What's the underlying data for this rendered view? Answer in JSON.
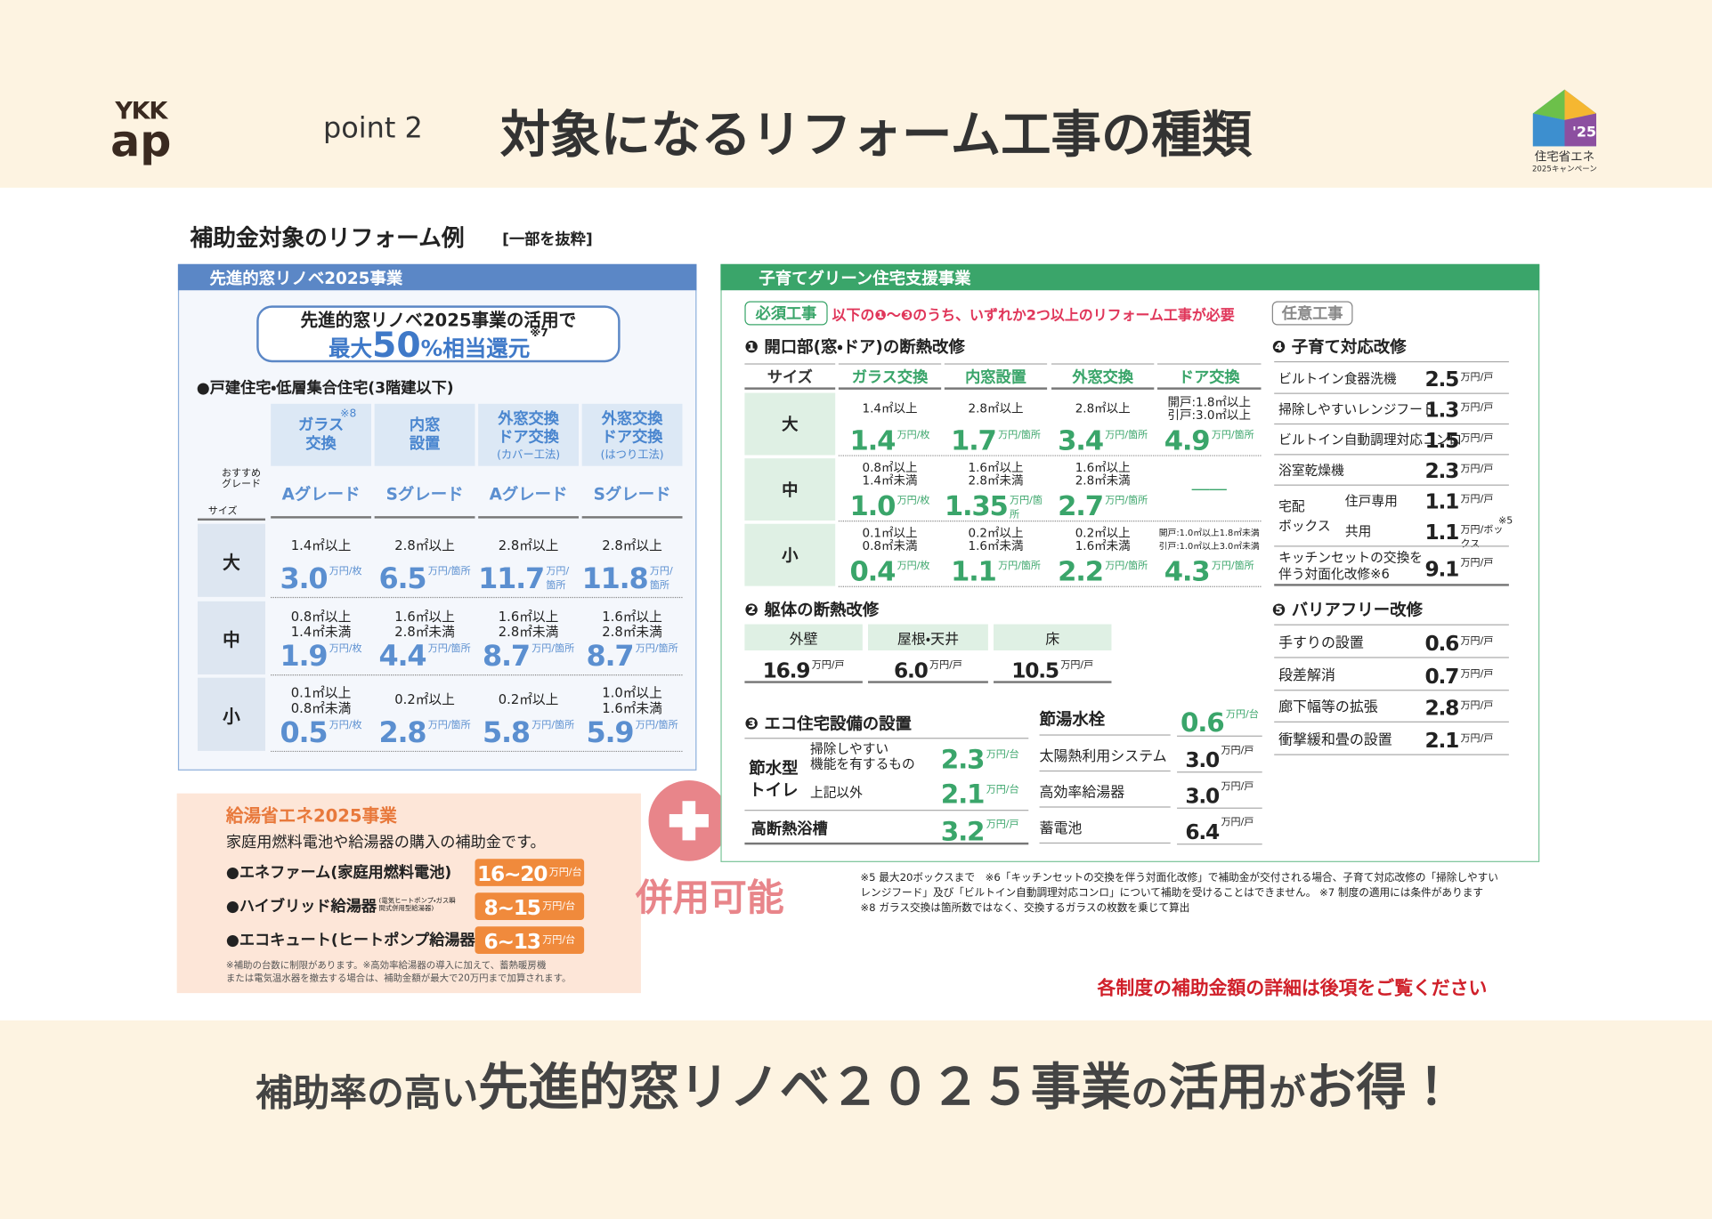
{
  "header": {
    "logo_top": "YKK",
    "logo_bottom": "ap",
    "point": "point 2",
    "title": "対象になるリフォーム工事の種類",
    "badge_year": "'25",
    "badge_line1": "住宅省エネ",
    "badge_line2": "2025キャンペーン"
  },
  "section": {
    "title": "補助金対象のリフォーム例",
    "note": "[一部を抜粋]"
  },
  "window_renovation": {
    "title": "先進的窓リノベ2025事業",
    "callout_line1": "先進的窓リノベ2025事業の活用で",
    "callout_prefix": "最大",
    "callout_number": "50",
    "callout_suffix": "%相当還元",
    "callout_note": "※7",
    "subtitle": "●戸建住宅・低層集合住宅(3階建以下)",
    "corner_grade": "おすすめグレード",
    "corner_size": "サイズ",
    "columns": [
      {
        "name": [
          "ガラス",
          "交換"
        ],
        "note": "※8",
        "grade": "Aグレード"
      },
      {
        "name": [
          "内窓",
          "設置"
        ],
        "grade": "Sグレード"
      },
      {
        "name": [
          "外窓交換",
          "ドア交換"
        ],
        "method": "(カバー工法)",
        "grade": "Aグレード"
      },
      {
        "name": [
          "外窓交換",
          "ドア交換"
        ],
        "method": "(はつり工法)",
        "grade": "Sグレード"
      }
    ],
    "rows": [
      {
        "size": "大",
        "cells": [
          {
            "range": [
              "1.4㎡以上"
            ],
            "amount": "3.0",
            "unit": "万円/枚"
          },
          {
            "range": [
              "2.8㎡以上"
            ],
            "amount": "6.5",
            "unit": "万円/箇所"
          },
          {
            "range": [
              "2.8㎡以上"
            ],
            "amount": "11.7",
            "unit": "万円/箇所"
          },
          {
            "range": [
              "2.8㎡以上"
            ],
            "amount": "11.8",
            "unit": "万円/箇所"
          }
        ]
      },
      {
        "size": "中",
        "cells": [
          {
            "range": [
              "0.8㎡以上",
              "1.4㎡未満"
            ],
            "amount": "1.9",
            "unit": "万円/枚"
          },
          {
            "range": [
              "1.6㎡以上",
              "2.8㎡未満"
            ],
            "amount": "4.4",
            "unit": "万円/箇所"
          },
          {
            "range": [
              "1.6㎡以上",
              "2.8㎡未満"
            ],
            "amount": "8.7",
            "unit": "万円/箇所"
          },
          {
            "range": [
              "1.6㎡以上",
              "2.8㎡未満"
            ],
            "amount": "8.7",
            "unit": "万円/箇所"
          }
        ]
      },
      {
        "size": "小",
        "cells": [
          {
            "range": [
              "0.1㎡以上",
              "0.8㎡未満"
            ],
            "amount": "0.5",
            "unit": "万円/枚"
          },
          {
            "range": [
              "0.2㎡以上"
            ],
            "amount": "2.8",
            "unit": "万円/箇所"
          },
          {
            "range": [
              "0.2㎡以上"
            ],
            "amount": "5.8",
            "unit": "万円/箇所"
          },
          {
            "range": [
              "1.0㎡以上",
              "1.6㎡未満"
            ],
            "amount": "5.9",
            "unit": "万円/箇所"
          }
        ]
      }
    ]
  },
  "hot_water": {
    "title": "給湯省エネ2025事業",
    "description": "家庭用燃料電池や給湯器の購入の補助金です。",
    "items": [
      {
        "name": "●エネファーム(家庭用燃料電池)",
        "amount": "16~20",
        "unit": "万円/台"
      },
      {
        "name": "●ハイブリッド給湯器",
        "note": "(電気ヒートポンプ・ガス瞬間式併用型給湯器)",
        "amount": "8~15",
        "unit": "万円/台"
      },
      {
        "name": "●エコキュート(ヒートポンプ給湯器)",
        "amount": "6~13",
        "unit": "万円/台"
      }
    ],
    "footnote": [
      "※補助の台数に制限があります。※高効率給湯器の導入に加えて、蓄熱暖房機",
      "または電気温水器を撤去する場合は、補助金額が最大で20万円まで加算されます。"
    ]
  },
  "combine": {
    "label": "併用可能"
  },
  "green_housing": {
    "title": "子育てグリーン住宅支援事業",
    "required_tag": "必須工事",
    "requirement": "以下の❶～❸のうち、いずれか2つ以上のリフォーム工事が必要",
    "optional_tag": "任意工事",
    "openings": {
      "title": "❶ 開口部(窓・ドア)の断熱改修",
      "headers": [
        "サイズ",
        "ガラス交換",
        "内窓設置",
        "外窓交換",
        "ドア交換"
      ],
      "rows": [
        {
          "size": "大",
          "cells": [
            {
              "range": [
                "1.4㎡以上"
              ],
              "amount": "1.4",
              "unit": "万円/枚"
            },
            {
              "range": [
                "2.8㎡以上"
              ],
              "amount": "1.7",
              "unit": "万円/箇所"
            },
            {
              "range": [
                "2.8㎡以上"
              ],
              "amount": "3.4",
              "unit": "万円/箇所"
            },
            {
              "range": [
                "開戸:1.8㎡以上",
                "引戸:3.0㎡以上"
              ],
              "amount": "4.9",
              "unit": "万円/箇所"
            }
          ]
        },
        {
          "size": "中",
          "cells": [
            {
              "range": [
                "0.8㎡以上",
                "1.4㎡未満"
              ],
              "amount": "1.0",
              "unit": "万円/枚"
            },
            {
              "range": [
                "1.6㎡以上",
                "2.8㎡未満"
              ],
              "amount": "1.35",
              "unit": "万円/箇所"
            },
            {
              "range": [
                "1.6㎡以上",
                "2.8㎡未満"
              ],
              "amount": "2.7",
              "unit": "万円/箇所"
            },
            {
              "dash": "――"
            }
          ]
        },
        {
          "size": "小",
          "cells": [
            {
              "range": [
                "0.1㎡以上",
                "0.8㎡未満"
              ],
              "amount": "0.4",
              "unit": "万円/枚"
            },
            {
              "range": [
                "0.2㎡以上",
                "1.6㎡未満"
              ],
              "amount": "1.1",
              "unit": "万円/箇所"
            },
            {
              "range": [
                "0.2㎡以上",
                "1.6㎡未満"
              ],
              "amount": "2.2",
              "unit": "万円/箇所"
            },
            {
              "range": [
                "開戸:1.0㎡以上1.8㎡未満",
                "引戸:1.0㎡以上3.0㎡未満"
              ],
              "amount": "4.3",
              "unit": "万円/箇所"
            }
          ]
        }
      ]
    },
    "structure": {
      "title": "❷ 躯体の断熱改修",
      "items": [
        {
          "name": "外壁",
          "amount": "16.9",
          "unit": "万円/戸"
        },
        {
          "name": "屋根・天井",
          "amount": "6.0",
          "unit": "万円/戸"
        },
        {
          "name": "床",
          "amount": "10.5",
          "unit": "万円/戸"
        }
      ]
    },
    "eco_equipment": {
      "title": "❸ エコ住宅設備の設置",
      "toilet_label": [
        "節水型",
        "トイレ"
      ],
      "toilet_items": [
        {
          "name": [
            "掃除しやすい",
            "機能を有するもの"
          ],
          "amount": "2.3",
          "unit": "万円/台"
        },
        {
          "name": [
            "上記以外"
          ],
          "amount": "2.1",
          "unit": "万円/台"
        }
      ],
      "bath": {
        "name": "高断熱浴槽",
        "amount": "3.2",
        "unit": "万円/戸"
      },
      "right_items": [
        {
          "name": "節湯水栓",
          "amount": "0.6",
          "unit": "万円/台"
        },
        {
          "name": "太陽熱利用システム",
          "amount": "3.0",
          "unit": "万円/戸"
        },
        {
          "name": "高効率給湯器",
          "amount": "3.0",
          "unit": "万円/戸"
        },
        {
          "name": "蓄電池",
          "amount": "6.4",
          "unit": "万円/戸"
        }
      ]
    },
    "childcare": {
      "title": "❹ 子育て対応改修",
      "items": [
        {
          "name": "ビルトイン食器洗機",
          "amount": "2.5",
          "unit": "万円/戸"
        },
        {
          "name": "掃除しやすいレンジフード",
          "amount": "1.3",
          "unit": "万円/戸"
        },
        {
          "name": "ビルトイン自動調理対応コンロ",
          "amount": "1.5",
          "unit": "万円/戸"
        },
        {
          "name": "浴室乾燥機",
          "amount": "2.3",
          "unit": "万円/戸"
        }
      ],
      "delivery_box": {
        "label": [
          "宅配",
          "ボックス"
        ],
        "items": [
          {
            "name": "住戸専用",
            "amount": "1.1",
            "unit": "万円/戸"
          },
          {
            "name": "共用",
            "amount": "1.1",
            "unit": "万円/ボックス",
            "note": "※5"
          }
        ]
      },
      "kitchen": {
        "name": [
          "キッチンセットの交換を",
          "伴う対面化改修※6"
        ],
        "amount": "9.1",
        "unit": "万円/戸"
      }
    },
    "barrier_free": {
      "title": "❺ バリアフリー改修",
      "items": [
        {
          "name": "手すりの設置",
          "amount": "0.6",
          "unit": "万円/戸"
        },
        {
          "name": "段差解消",
          "amount": "0.7",
          "unit": "万円/戸"
        },
        {
          "name": "廊下幅等の拡張",
          "amount": "2.8",
          "unit": "万円/戸"
        },
        {
          "name": "衝撃緩和畳の設置",
          "amount": "2.1",
          "unit": "万円/戸"
        }
      ]
    }
  },
  "notes": [
    "※5 最大20ボックスまで　※6「キッチンセットの交換を伴う対面化改修」で補助金が交付される場合、子育て対応改修の「掃除しやすい",
    "レンジフード」及び「ビルトイン自動調理対応コンロ」について補助を受けることはできません。 ※7 制度の適用には条件があります",
    "※8 ガラス交換は箇所数ではなく、交換するガラスの枚数を乗じて算出"
  ],
  "details_note": "各制度の補助金額の詳細は後項をご覧ください",
  "banner": [
    {
      "text": "補助率の高い",
      "emphasis": false
    },
    {
      "text": "先進的窓リノベ２０２５事業",
      "emphasis": true
    },
    {
      "text": "の",
      "emphasis": false
    },
    {
      "text": "活用",
      "emphasis": true
    },
    {
      "text": "が",
      "emphasis": false
    },
    {
      "text": "お得！",
      "emphasis": true
    }
  ]
}
